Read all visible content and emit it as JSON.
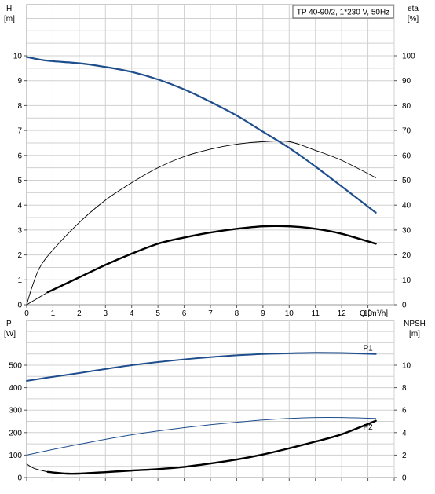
{
  "chart_data": [
    {
      "type": "line",
      "legend_box": "TP 40-90/2, 1*230 V, 50Hz",
      "left_axis": {
        "label_top": "H",
        "label_unit": "[m]",
        "min": 0,
        "max": 10,
        "ticks": [
          "0",
          "1",
          "2",
          "3",
          "4",
          "5",
          "6",
          "7",
          "8",
          "9",
          "10"
        ]
      },
      "right_axis": {
        "label_top": "eta",
        "label_unit": "[%]",
        "min": 0,
        "max": 100,
        "ticks": [
          "0",
          "10",
          "20",
          "30",
          "40",
          "50",
          "60",
          "70",
          "80",
          "90",
          "100"
        ]
      },
      "x_axis": {
        "label": "Q [m³/h]",
        "min": 0,
        "max": 14,
        "ticks": [
          "0",
          "1",
          "2",
          "3",
          "4",
          "5",
          "6",
          "7",
          "8",
          "9",
          "10",
          "11",
          "12",
          "13"
        ]
      },
      "grid": true,
      "series": [
        {
          "name": "H",
          "axis": "left",
          "color": "#1f4e8c",
          "width": 2.2,
          "x": [
            0,
            0.8,
            2,
            3,
            4,
            5,
            6,
            7,
            8,
            9,
            10,
            11,
            12,
            13.3
          ],
          "y": [
            9.95,
            9.8,
            9.7,
            9.55,
            9.35,
            9.05,
            8.65,
            8.15,
            7.6,
            6.95,
            6.3,
            5.55,
            4.75,
            3.7
          ]
        },
        {
          "name": "",
          "axis": "right",
          "color": "#000000",
          "width": 0.9,
          "x": [
            0,
            0.2,
            0.5,
            1,
            2,
            3,
            4,
            5,
            6,
            7,
            8,
            9,
            10,
            11,
            12,
            13.3
          ],
          "y": [
            0,
            7,
            15,
            22,
            33,
            42,
            49,
            55,
            59.5,
            62.5,
            64.5,
            65.5,
            65.5,
            62,
            58,
            51
          ]
        },
        {
          "name": "",
          "axis": "right",
          "color": "#000000",
          "width": 2.4,
          "x": [
            0.8,
            2,
            3,
            4,
            5,
            6,
            7,
            8,
            9,
            10,
            11,
            12,
            13.3
          ],
          "y": [
            5,
            11,
            16,
            20.5,
            24.5,
            27,
            29,
            30.5,
            31.5,
            31.5,
            30.5,
            28.5,
            24.5
          ]
        },
        {
          "name": "",
          "axis": "right",
          "color": "#000000",
          "width": 0.9,
          "x": [
            0,
            0.8
          ],
          "y": [
            0,
            5
          ]
        }
      ]
    },
    {
      "type": "line",
      "left_axis": {
        "label_top": "P",
        "label_unit": "[W]",
        "min": 0,
        "max": 600,
        "ticks": [
          "0",
          "100",
          "200",
          "300",
          "400",
          "500"
        ]
      },
      "right_axis": {
        "label_top": "NPSH",
        "label_unit": "[m]",
        "min": 0,
        "max": 12,
        "ticks": [
          "0",
          "2",
          "4",
          "6",
          "8",
          "10"
        ]
      },
      "x_axis": {
        "min": 0,
        "max": 14
      },
      "grid": true,
      "series": [
        {
          "name": "P1",
          "axis": "left",
          "color": "#1f4e8c",
          "width": 2,
          "x": [
            0,
            0.8,
            2,
            3,
            4,
            5,
            6,
            7,
            8,
            9,
            10,
            11,
            12,
            13.3
          ],
          "y": [
            430,
            445,
            465,
            483,
            500,
            514,
            526,
            536,
            544,
            550,
            553,
            555,
            554,
            550
          ]
        },
        {
          "name": "P2",
          "axis": "left",
          "color": "#1f4e8c",
          "width": 1,
          "x": [
            0,
            1,
            2,
            3,
            4,
            5,
            6,
            7,
            8,
            9,
            10,
            11,
            12,
            13.3
          ],
          "y": [
            100,
            125,
            148,
            170,
            190,
            207,
            222,
            235,
            246,
            256,
            263,
            267,
            267,
            263
          ]
        },
        {
          "name": "NPSH",
          "axis": "right",
          "color": "#000000",
          "width": 2.4,
          "x": [
            0.8,
            1.5,
            2,
            3,
            4,
            5,
            6,
            7,
            8,
            9,
            10,
            11,
            12,
            13.3
          ],
          "y": [
            0.5,
            0.35,
            0.35,
            0.48,
            0.62,
            0.75,
            0.95,
            1.25,
            1.6,
            2.05,
            2.6,
            3.2,
            3.85,
            5.05
          ]
        },
        {
          "name": "",
          "axis": "right",
          "color": "#000000",
          "width": 1,
          "x": [
            0,
            0.3,
            0.8
          ],
          "y": [
            1.2,
            0.8,
            0.5
          ]
        }
      ]
    }
  ]
}
